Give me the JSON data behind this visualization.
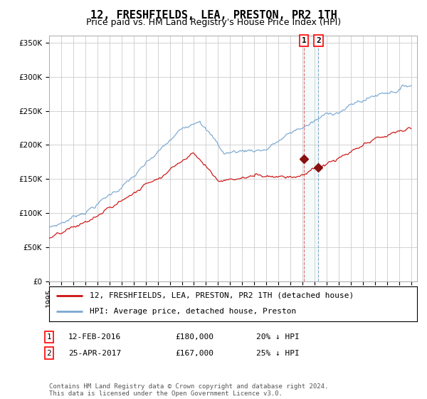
{
  "title": "12, FRESHFIELDS, LEA, PRESTON, PR2 1TH",
  "subtitle": "Price paid vs. HM Land Registry's House Price Index (HPI)",
  "ylim": [
    0,
    360000
  ],
  "yticks": [
    0,
    50000,
    100000,
    150000,
    200000,
    250000,
    300000,
    350000
  ],
  "ytick_labels": [
    "£0",
    "£50K",
    "£100K",
    "£150K",
    "£200K",
    "£250K",
    "£300K",
    "£350K"
  ],
  "hpi_color": "#7aa8d2",
  "price_color": "#cc1111",
  "marker_color": "#881111",
  "background_color": "#ffffff",
  "grid_color": "#cccccc",
  "sale1_date": 2016.11,
  "sale1_price": 180000,
  "sale1_label": "1",
  "sale2_date": 2017.32,
  "sale2_price": 167000,
  "sale2_label": "2",
  "legend_entries": [
    "12, FRESHFIELDS, LEA, PRESTON, PR2 1TH (detached house)",
    "HPI: Average price, detached house, Preston"
  ],
  "table_rows": [
    {
      "num": "1",
      "date": "12-FEB-2016",
      "price": "£180,000",
      "hpi": "20% ↓ HPI"
    },
    {
      "num": "2",
      "date": "25-APR-2017",
      "price": "£167,000",
      "hpi": "25% ↓ HPI"
    }
  ],
  "footnote": "Contains HM Land Registry data © Crown copyright and database right 2024.\nThis data is licensed under the Open Government Licence v3.0.",
  "title_fontsize": 11,
  "subtitle_fontsize": 9,
  "tick_fontsize": 7.5,
  "legend_fontsize": 8,
  "table_fontsize": 8
}
